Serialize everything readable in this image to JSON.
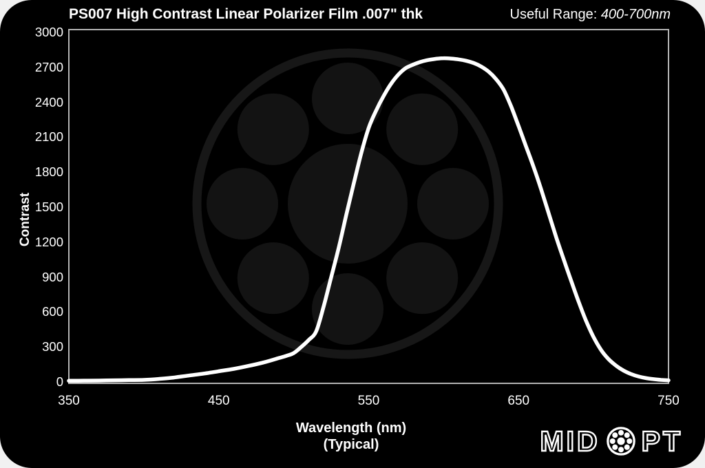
{
  "header": {
    "title": "PS007 High Contrast Linear Polarizer Film .007\" thk",
    "useful_range_label": "Useful Range: ",
    "useful_range_value": "400-700nm"
  },
  "chart_data": {
    "type": "line",
    "title": "PS007 High Contrast Linear Polarizer Film .007\" thk",
    "xlabel": "Wavelength (nm)",
    "xlabel_sub": "(Typical)",
    "ylabel": "Contrast",
    "xlim": [
      350,
      750
    ],
    "ylim": [
      0,
      3000
    ],
    "xticks": [
      350,
      450,
      550,
      650,
      750
    ],
    "yticks": [
      0,
      300,
      600,
      900,
      1200,
      1500,
      1800,
      2100,
      2400,
      2700,
      3000
    ],
    "grid": false,
    "legend": false,
    "series": [
      {
        "name": "Contrast (typical)",
        "color": "#ffffff",
        "points": [
          [
            350,
            10
          ],
          [
            360,
            11
          ],
          [
            370,
            12
          ],
          [
            380,
            14
          ],
          [
            390,
            16
          ],
          [
            400,
            18
          ],
          [
            410,
            26
          ],
          [
            420,
            38
          ],
          [
            430,
            55
          ],
          [
            440,
            72
          ],
          [
            450,
            92
          ],
          [
            460,
            112
          ],
          [
            470,
            138
          ],
          [
            480,
            168
          ],
          [
            490,
            205
          ],
          [
            495,
            224
          ],
          [
            500,
            248
          ],
          [
            505,
            300
          ],
          [
            510,
            360
          ],
          [
            515,
            435
          ],
          [
            520,
            650
          ],
          [
            525,
            900
          ],
          [
            530,
            1150
          ],
          [
            535,
            1430
          ],
          [
            540,
            1700
          ],
          [
            545,
            1960
          ],
          [
            550,
            2180
          ],
          [
            555,
            2330
          ],
          [
            560,
            2455
          ],
          [
            565,
            2560
          ],
          [
            570,
            2640
          ],
          [
            575,
            2695
          ],
          [
            580,
            2725
          ],
          [
            585,
            2748
          ],
          [
            590,
            2763
          ],
          [
            595,
            2773
          ],
          [
            600,
            2778
          ],
          [
            605,
            2775
          ],
          [
            610,
            2768
          ],
          [
            615,
            2756
          ],
          [
            620,
            2737
          ],
          [
            625,
            2707
          ],
          [
            630,
            2663
          ],
          [
            635,
            2598
          ],
          [
            640,
            2508
          ],
          [
            645,
            2365
          ],
          [
            650,
            2195
          ],
          [
            655,
            2020
          ],
          [
            660,
            1845
          ],
          [
            665,
            1655
          ],
          [
            670,
            1450
          ],
          [
            675,
            1245
          ],
          [
            680,
            1055
          ],
          [
            685,
            870
          ],
          [
            690,
            690
          ],
          [
            695,
            525
          ],
          [
            700,
            385
          ],
          [
            705,
            275
          ],
          [
            710,
            196
          ],
          [
            715,
            140
          ],
          [
            720,
            98
          ],
          [
            725,
            68
          ],
          [
            730,
            47
          ],
          [
            735,
            33
          ],
          [
            740,
            24
          ],
          [
            745,
            18
          ],
          [
            750,
            14
          ]
        ]
      }
    ]
  },
  "branding": {
    "logo_left": "MID",
    "logo_right": "PT",
    "logo_name": "MIDOPT"
  },
  "colors": {
    "background": "#000000",
    "page": "#f1f1f1",
    "curve": "#ffffff",
    "plot_border": "#b3b3b3",
    "text": "#ffffff",
    "watermark_fill": "#131313",
    "watermark_ring": "#171717"
  }
}
